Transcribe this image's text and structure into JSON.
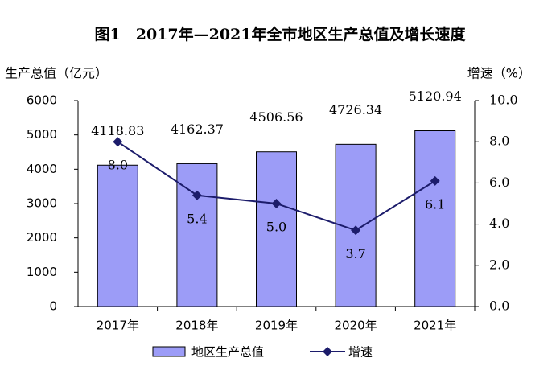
{
  "chart_data": {
    "type": "bar-line",
    "title": "图1　2017年—2021年全市地区生产总值及增长速度",
    "y_label": "生产总值（亿元）",
    "y2_label": "增速（%）",
    "categories": [
      "2017年",
      "2018年",
      "2019年",
      "2020年",
      "2021年"
    ],
    "series": [
      {
        "name": "地区生产总值",
        "type": "bar",
        "color": "#9c9cf7",
        "values": [
          4118.83,
          4162.37,
          4506.56,
          4726.34,
          5120.94
        ]
      },
      {
        "name": "增速",
        "type": "line",
        "axis": "y2",
        "color": "#1c1c6b",
        "values": [
          8.0,
          5.4,
          5.0,
          3.7,
          6.1
        ],
        "value_labels": [
          "8.0",
          "5.4",
          "5.0",
          "3.7",
          "6.1"
        ]
      }
    ],
    "ylim": [
      0,
      6000
    ],
    "yticks": [
      0,
      1000,
      2000,
      3000,
      4000,
      5000,
      6000
    ],
    "y2lim": [
      0,
      10
    ],
    "y2ticks": [
      {
        "value": 0,
        "label": "0.0"
      },
      {
        "value": 2,
        "label": "2.0"
      },
      {
        "value": 4,
        "label": "4.0"
      },
      {
        "value": 6,
        "label": "6.0"
      },
      {
        "value": 8,
        "label": "8.0"
      },
      {
        "value": 10,
        "label": "10.0"
      }
    ],
    "grid": false,
    "legend": "bottom"
  }
}
